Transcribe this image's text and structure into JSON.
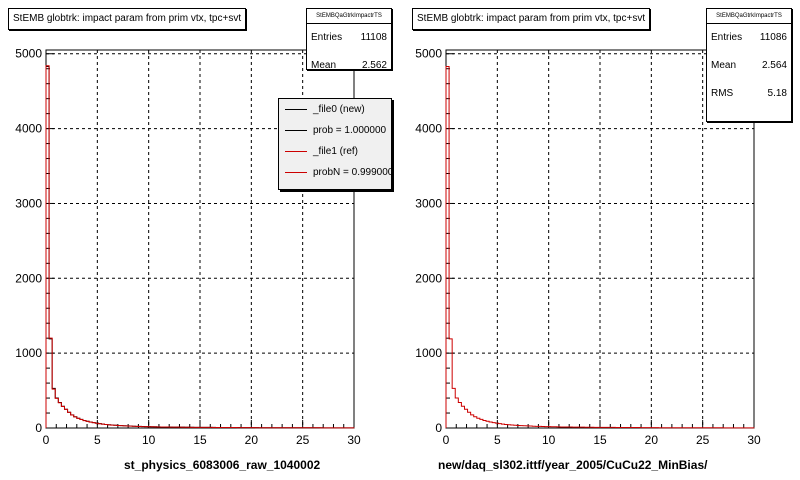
{
  "chart_data": [
    {
      "type": "bar",
      "title": "StEMB globtrk: impact param from prim vtx, tpc+svt",
      "xlabel": "st_physics_6083006_raw_1040002",
      "ylabel": "",
      "xlim": [
        0,
        30
      ],
      "ylim": [
        0,
        5050
      ],
      "xticks": [
        0,
        5,
        10,
        15,
        20,
        25,
        30
      ],
      "yticks": [
        0,
        1000,
        2000,
        3000,
        4000,
        5000
      ],
      "grid": true,
      "bin_width": 0.3,
      "stats": {
        "name": "StEMBQaGtrkImpactrTS",
        "entries_label": "Entries",
        "entries": "11108",
        "mean_label": "Mean",
        "mean": "2.562"
      },
      "legend": {
        "placement": "top-right",
        "entries": [
          {
            "label": "_file0 (new)",
            "color": "#000000"
          },
          {
            "label": "prob = 1.000000",
            "color": "#000000"
          },
          {
            "label": "_file1 (ref)",
            "color": "#cc0000"
          },
          {
            "label": "probN = 0.999000",
            "color": "#cc0000"
          }
        ]
      },
      "series": [
        {
          "name": "_file0 (new)",
          "color": "#000000",
          "values": [
            4830,
            1190,
            530,
            400,
            340,
            290,
            250,
            210,
            175,
            150,
            130,
            115,
            100,
            90,
            80,
            72,
            65,
            58,
            52,
            47,
            43,
            40,
            37,
            34,
            32,
            30,
            28,
            26,
            24,
            22,
            21,
            20,
            19,
            18,
            17,
            16,
            15,
            14,
            14,
            13,
            13,
            12,
            12,
            11,
            11,
            10,
            10,
            10,
            9,
            9,
            9,
            8,
            8,
            8,
            8,
            7,
            7,
            7,
            7,
            6,
            6,
            6,
            6,
            5,
            5,
            5,
            5,
            5,
            5,
            4,
            4,
            4,
            4,
            4,
            4,
            4,
            4,
            3,
            3,
            3,
            3,
            3,
            3,
            3,
            3,
            3,
            3,
            3,
            3,
            3,
            2,
            2,
            2,
            2,
            2,
            2,
            2,
            2,
            2,
            2
          ]
        },
        {
          "name": "_file1 (ref)",
          "color": "#cc0000",
          "values": [
            4840,
            1200,
            520,
            395,
            338,
            288,
            248,
            209,
            174,
            149,
            129,
            114,
            99,
            89,
            79,
            71,
            64,
            57,
            51,
            46,
            42,
            39,
            36,
            33,
            31,
            29,
            27,
            25,
            23,
            21,
            20,
            19,
            18,
            17,
            16,
            15,
            14,
            14,
            13,
            13,
            12,
            12,
            11,
            11,
            10,
            10,
            10,
            9,
            9,
            9,
            8,
            8,
            8,
            8,
            7,
            7,
            7,
            7,
            6,
            6,
            6,
            6,
            5,
            5,
            5,
            5,
            5,
            5,
            4,
            4,
            4,
            4,
            4,
            4,
            4,
            4,
            3,
            3,
            3,
            3,
            3,
            3,
            3,
            3,
            3,
            3,
            3,
            3,
            3,
            2,
            2,
            2,
            2,
            2,
            2,
            2,
            2,
            2,
            2,
            2
          ]
        }
      ]
    },
    {
      "type": "bar",
      "title": "StEMB globtrk: impact param from prim vtx, tpc+svt",
      "xlabel": "new/daq_sl302.ittf/year_2005/CuCu22_MinBias/",
      "ylabel": "",
      "xlim": [
        0,
        30
      ],
      "ylim": [
        0,
        5050
      ],
      "xticks": [
        0,
        5,
        10,
        15,
        20,
        25,
        30
      ],
      "yticks": [
        0,
        1000,
        2000,
        3000,
        4000,
        5000
      ],
      "grid": true,
      "bin_width": 0.3,
      "stats": {
        "name": "StEMBQaGtrkImpactrTS",
        "entries_label": "Entries",
        "entries": "11086",
        "mean_label": "Mean",
        "mean": "2.564",
        "rms_label": "RMS",
        "rms": "5.18"
      },
      "series": [
        {
          "name": "",
          "color": "#cc0000",
          "values": [
            4830,
            1190,
            530,
            400,
            340,
            290,
            250,
            210,
            175,
            150,
            130,
            115,
            100,
            90,
            80,
            72,
            65,
            58,
            52,
            47,
            43,
            40,
            37,
            34,
            32,
            30,
            28,
            26,
            24,
            22,
            21,
            20,
            19,
            18,
            17,
            16,
            15,
            14,
            14,
            13,
            13,
            12,
            12,
            11,
            11,
            10,
            10,
            10,
            9,
            9,
            9,
            8,
            8,
            8,
            8,
            7,
            7,
            7,
            7,
            6,
            6,
            6,
            6,
            5,
            5,
            5,
            5,
            5,
            5,
            4,
            4,
            4,
            4,
            4,
            4,
            4,
            4,
            3,
            3,
            3,
            3,
            3,
            3,
            3,
            3,
            3,
            3,
            3,
            3,
            3,
            2,
            2,
            2,
            2,
            2,
            2,
            2,
            2,
            2,
            2
          ]
        }
      ]
    }
  ]
}
